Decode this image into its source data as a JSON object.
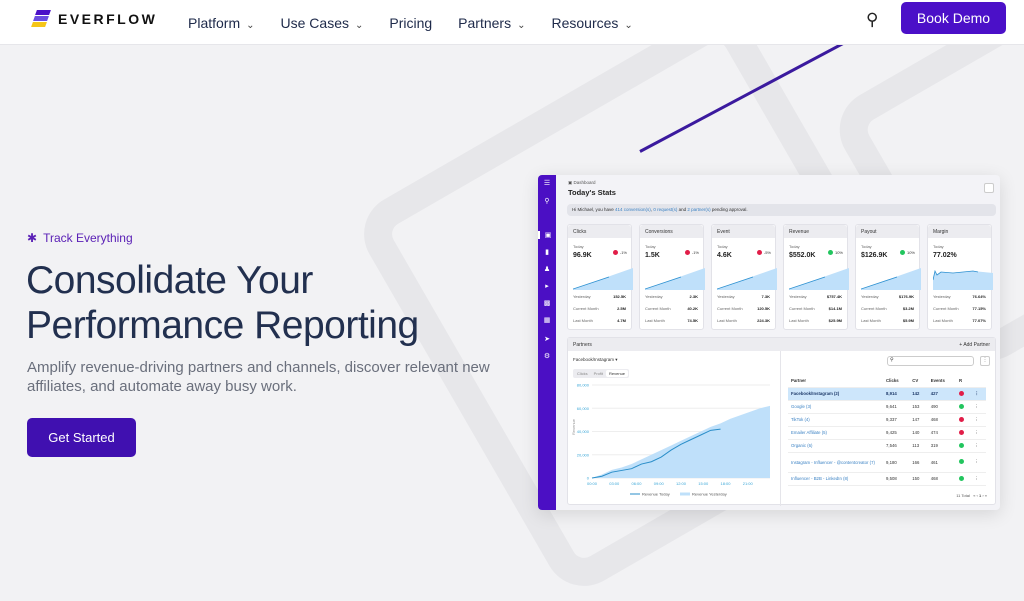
{
  "nav": {
    "brand": "EVERFLOW",
    "items": [
      {
        "label": "Platform",
        "dropdown": true
      },
      {
        "label": "Use Cases",
        "dropdown": true
      },
      {
        "label": "Pricing",
        "dropdown": false
      },
      {
        "label": "Partners",
        "dropdown": true
      },
      {
        "label": "Resources",
        "dropdown": true
      }
    ],
    "book_demo": "Book Demo",
    "search_icon": "search-icon"
  },
  "hero": {
    "tag": "Track Everything",
    "title_line1": "Consolidate Your",
    "title_line2": "Performance Reporting",
    "lead": "Amplify revenue-driving partners and channels, discover relevant new affiliates, and automate away busy work.",
    "cta": "Get Started"
  },
  "colors": {
    "brand": "#4b10c8",
    "accent": "#5b21b6",
    "up": "#22c55e",
    "down": "#e11d48"
  },
  "dashboard": {
    "crumb": "Dashboard",
    "title": "Today's Stats",
    "notice": {
      "pre": "Hi Michael, you have ",
      "conv": "414 conversion(s)",
      "sep1": ", ",
      "req": "0 request(s)",
      "and": " and ",
      "partners": "2 partner(s)",
      "post": " pending approval."
    },
    "labels": {
      "today": "Today",
      "yesterday": "Yesterday",
      "current_month": "Current Month",
      "last_month": "Last Month"
    },
    "cards": [
      {
        "title": "Clicks",
        "today": "96.9K",
        "change": "-1%",
        "trend": "down",
        "yesterday": "152.5K",
        "current_month": "2.5M",
        "last_month": "4.7M"
      },
      {
        "title": "Conversions",
        "today": "1.5K",
        "change": "-1%",
        "trend": "down",
        "yesterday": "2.3K",
        "current_month": "40.2K",
        "last_month": "74.5K"
      },
      {
        "title": "Event",
        "today": "4.6K",
        "change": "-5%",
        "trend": "down",
        "yesterday": "7.3K",
        "current_month": "120.5K",
        "last_month": "224.3K"
      },
      {
        "title": "Revenue",
        "today": "$552.0K",
        "change": "10%",
        "trend": "up",
        "yesterday": "$757.4K",
        "current_month": "$14.1M",
        "last_month": "$25.9M"
      },
      {
        "title": "Payout",
        "today": "$126.9K",
        "change": "10%",
        "trend": "up",
        "yesterday": "$176.9K",
        "current_month": "$3.2M",
        "last_month": "$5.9M"
      },
      {
        "title": "Margin",
        "today": "77.02%",
        "change": "",
        "trend": "",
        "yesterday": "76.64%",
        "current_month": "77.15%",
        "last_month": "77.07%"
      }
    ],
    "partners": {
      "title": "Partners",
      "add": "+ Add Partner",
      "selector": "Facebook/Instagram",
      "tabs": [
        "Clicks",
        "Profit",
        "Revenue"
      ],
      "active_tab": "Revenue",
      "chart": {
        "ylabel": "Revenue",
        "yticks": [
          "80,000",
          "60,000",
          "40,000",
          "20,000",
          "0"
        ],
        "xticks": [
          "00:00",
          "03:00",
          "06:00",
          "09:00",
          "12:00",
          "15:00",
          "18:00",
          "21:00"
        ],
        "today": [
          0,
          1500,
          5000,
          6500,
          8000,
          12000,
          14000,
          18000,
          24000,
          29000,
          33000,
          37000,
          41000,
          42000
        ],
        "yesterday": [
          0,
          3000,
          7000,
          9000,
          12000,
          16000,
          20000,
          24000,
          28000,
          32000,
          36000,
          40000,
          44000,
          47000,
          51000,
          54000,
          57000,
          60000,
          62000
        ],
        "legend": [
          "Revenue Today",
          "Revenue Yesterday"
        ]
      },
      "columns": [
        "Partner",
        "Clicks",
        "CV",
        "Events",
        "R"
      ],
      "rows": [
        {
          "name": "Facebook/Instagram (2)",
          "clicks": "8,914",
          "cv": "142",
          "events": "427",
          "status": "down",
          "selected": true
        },
        {
          "name": "Google (3)",
          "clicks": "9,641",
          "cv": "153",
          "events": "490",
          "status": "up"
        },
        {
          "name": "TikTok (4)",
          "clicks": "9,337",
          "cv": "147",
          "events": "468",
          "status": "down"
        },
        {
          "name": "Emailer Affiliate (5)",
          "clicks": "9,425",
          "cv": "140",
          "events": "474",
          "status": "down"
        },
        {
          "name": "Organic (6)",
          "clicks": "7,546",
          "cv": "113",
          "events": "319",
          "status": "up"
        },
        {
          "name": "Instagram - Influencer - @contentcreator (7)",
          "clicks": "9,180",
          "cv": "166",
          "events": "461",
          "status": "up"
        },
        {
          "name": "Influencer - B2B - LinkedIn (8)",
          "clicks": "9,508",
          "cv": "150",
          "events": "468",
          "status": "up"
        }
      ],
      "total": "11 Total",
      "page": "1"
    }
  }
}
